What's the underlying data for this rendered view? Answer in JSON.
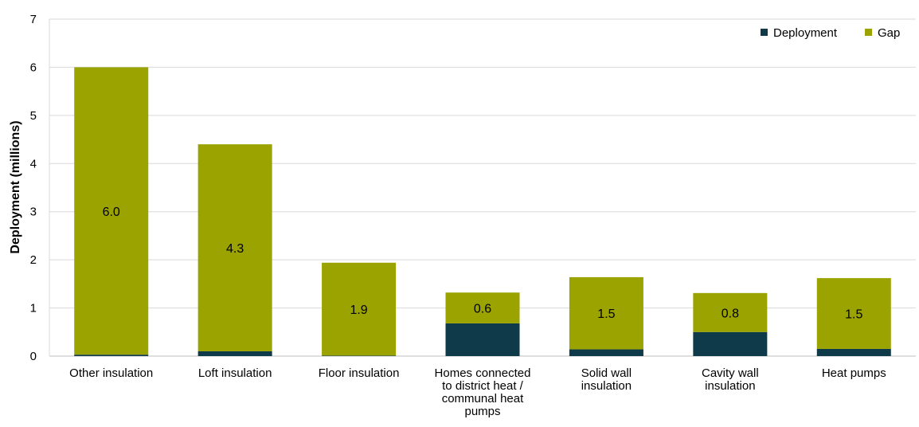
{
  "chart_data": {
    "type": "bar",
    "stacked": true,
    "ylabel": "Deployment (millions)",
    "xlabel": "",
    "ylim": [
      0,
      7
    ],
    "yticks": [
      "0",
      "1",
      "2",
      "3",
      "4",
      "5",
      "6",
      "7"
    ],
    "grid": "horizontal",
    "legend_position": "top-right",
    "categories": [
      "Other insulation",
      "Loft insulation",
      "Floor insulation",
      "Homes connected to district heat / communal heat pumps",
      "Solid wall insulation",
      "Cavity wall insulation",
      "Heat pumps"
    ],
    "series": [
      {
        "name": "Deployment",
        "color": "#0e3a4a",
        "values": [
          0.03,
          0.1,
          0.01,
          0.68,
          0.14,
          0.5,
          0.15
        ]
      },
      {
        "name": "Gap",
        "color": "#9aa300",
        "values": [
          5.97,
          4.3,
          1.93,
          0.64,
          1.5,
          0.81,
          1.47
        ]
      }
    ],
    "data_labels": [
      "6.0",
      "4.3",
      "1.9",
      "0.6",
      "1.5",
      "0.8",
      "1.5"
    ]
  }
}
